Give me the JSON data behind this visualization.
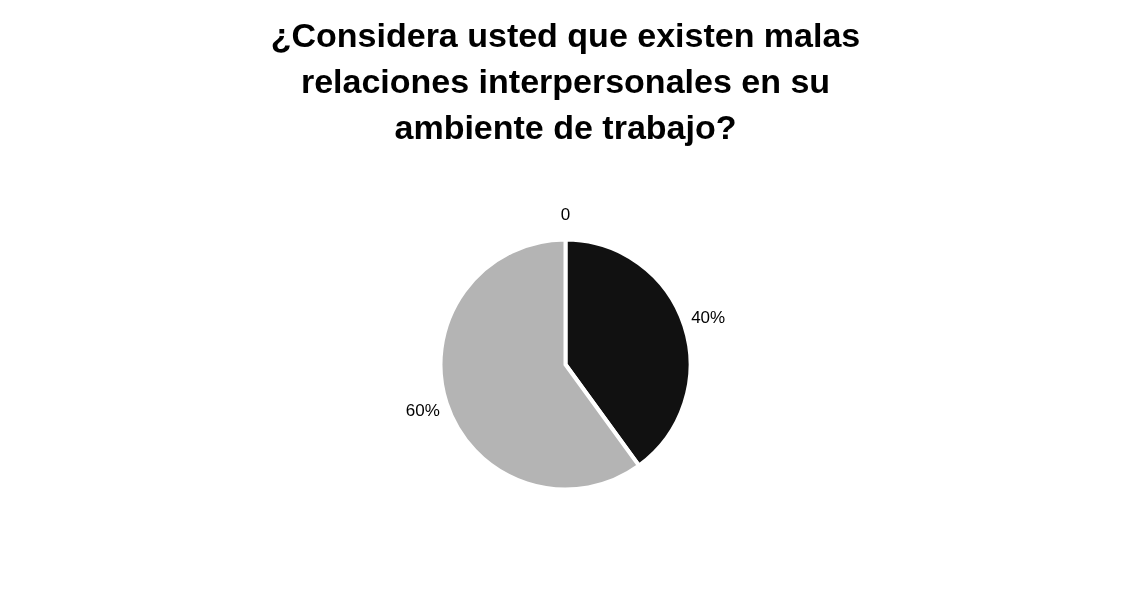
{
  "chart_data": {
    "type": "pie",
    "title": "¿Considera usted que existen malas relaciones interpersonales en su ambiente de trabajo?",
    "categories": [
      null,
      null,
      null
    ],
    "values": [
      0,
      40,
      60
    ],
    "colors": [
      "#000000",
      "#111111",
      "#b4b4b4"
    ],
    "value_labels": [
      "0",
      "40%",
      "60%"
    ],
    "legend": false
  }
}
